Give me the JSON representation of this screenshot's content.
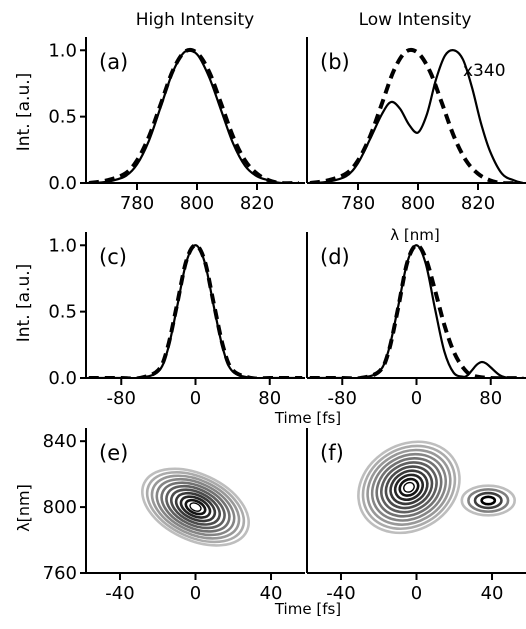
{
  "chart_data": [
    {
      "panel": "a",
      "type": "line",
      "column_title": "High Intensity",
      "ylabel": "Int. [a.u.]",
      "xlabel": "",
      "xlim": [
        763,
        836
      ],
      "ylim": [
        0,
        1.1
      ],
      "xticks": [
        780,
        800,
        820
      ],
      "yticks": [
        0.0,
        0.5,
        1.0
      ],
      "series": [
        {
          "style": "solid",
          "x": [
            764,
            770,
            776,
            780,
            784,
            788,
            792,
            796,
            800,
            804,
            808,
            812,
            816,
            820,
            824,
            828,
            834
          ],
          "y": [
            0.0,
            0.01,
            0.05,
            0.14,
            0.32,
            0.58,
            0.84,
            0.99,
            0.97,
            0.8,
            0.55,
            0.3,
            0.13,
            0.05,
            0.02,
            0.0,
            0.0
          ]
        },
        {
          "style": "dashed",
          "x": [
            764,
            770,
            776,
            780,
            784,
            788,
            792,
            796,
            800,
            804,
            808,
            812,
            816,
            820,
            824,
            828,
            834
          ],
          "y": [
            0.0,
            0.02,
            0.07,
            0.17,
            0.35,
            0.6,
            0.85,
            0.99,
            0.98,
            0.84,
            0.6,
            0.35,
            0.17,
            0.07,
            0.02,
            0.0,
            0.0
          ]
        }
      ]
    },
    {
      "panel": "b",
      "type": "line",
      "column_title": "Low Intensity",
      "annotation": "x340",
      "xlabel": "λ [nm]",
      "xlim": [
        763,
        836
      ],
      "ylim": [
        0,
        1.1
      ],
      "xticks": [
        780,
        800,
        820
      ],
      "series": [
        {
          "style": "solid",
          "x": [
            764,
            770,
            776,
            780,
            784,
            788,
            791,
            794,
            797,
            800,
            803,
            806,
            809,
            812,
            815,
            818,
            821,
            824,
            828,
            832,
            835
          ],
          "y": [
            0.0,
            0.01,
            0.05,
            0.15,
            0.33,
            0.52,
            0.61,
            0.56,
            0.44,
            0.38,
            0.52,
            0.78,
            0.96,
            1.0,
            0.93,
            0.72,
            0.45,
            0.24,
            0.07,
            0.02,
            0.0
          ]
        },
        {
          "style": "dashed",
          "x": [
            764,
            770,
            776,
            780,
            784,
            788,
            792,
            796,
            800,
            804,
            808,
            812,
            816,
            820,
            824,
            828,
            834
          ],
          "y": [
            0.0,
            0.02,
            0.07,
            0.17,
            0.35,
            0.6,
            0.85,
            0.99,
            0.98,
            0.84,
            0.6,
            0.35,
            0.17,
            0.07,
            0.02,
            0.0,
            0.0
          ]
        }
      ]
    },
    {
      "panel": "c",
      "type": "line",
      "ylabel": "Int. [a.u.]",
      "xlabel": "",
      "xlim": [
        -118,
        118
      ],
      "ylim": [
        0,
        1.1
      ],
      "xticks": [
        -80,
        0,
        80
      ],
      "yticks": [
        0.0,
        0.5,
        1.0
      ],
      "series": [
        {
          "style": "solid",
          "x": [
            -115,
            -80,
            -60,
            -40,
            -30,
            -20,
            -10,
            0,
            10,
            20,
            30,
            40,
            60,
            80,
            115
          ],
          "y": [
            0.0,
            0.0,
            0.0,
            0.05,
            0.21,
            0.53,
            0.87,
            1.0,
            0.87,
            0.53,
            0.21,
            0.05,
            0.0,
            0.0,
            0.0
          ]
        },
        {
          "style": "dashed",
          "x": [
            -115,
            -80,
            -60,
            -40,
            -30,
            -20,
            -10,
            0,
            10,
            20,
            30,
            40,
            60,
            80,
            115
          ],
          "y": [
            0.0,
            0.0,
            0.0,
            0.06,
            0.23,
            0.55,
            0.88,
            1.0,
            0.88,
            0.55,
            0.23,
            0.06,
            0.0,
            0.0,
            0.0
          ]
        }
      ]
    },
    {
      "panel": "d",
      "type": "line",
      "xlabel": "Time [fs]",
      "xlim": [
        -118,
        118
      ],
      "ylim": [
        0,
        1.1
      ],
      "xticks": [
        -80,
        0,
        80
      ],
      "series": [
        {
          "style": "solid",
          "x": [
            -115,
            -80,
            -60,
            -40,
            -30,
            -20,
            -10,
            0,
            10,
            20,
            30,
            40,
            50,
            55,
            60,
            65,
            70,
            75,
            80,
            90,
            100,
            115
          ],
          "y": [
            0.0,
            0.0,
            0.0,
            0.05,
            0.21,
            0.53,
            0.87,
            1.0,
            0.86,
            0.52,
            0.2,
            0.04,
            0.01,
            0.02,
            0.06,
            0.1,
            0.12,
            0.11,
            0.08,
            0.02,
            0.0,
            0.0
          ]
        },
        {
          "style": "dashed",
          "x": [
            -115,
            -80,
            -60,
            -40,
            -30,
            -20,
            -10,
            0,
            10,
            20,
            30,
            40,
            50,
            60,
            80,
            115
          ],
          "y": [
            0.0,
            0.0,
            0.0,
            0.05,
            0.2,
            0.52,
            0.87,
            1.0,
            0.9,
            0.66,
            0.4,
            0.2,
            0.08,
            0.02,
            0.0,
            0.0
          ]
        }
      ]
    },
    {
      "panel": "e",
      "type": "contour",
      "ylabel": "λ[nm]",
      "xlabel": "",
      "xlim": [
        -58,
        58
      ],
      "ylim": [
        760,
        848
      ],
      "xticks": [
        -40,
        0,
        40
      ],
      "yticks": [
        760,
        800,
        840
      ],
      "blobs": [
        {
          "center_x": 0,
          "center_y": 800,
          "radius_x": 30,
          "radius_y": 20,
          "tilt_deg": 25,
          "levels": 11
        }
      ]
    },
    {
      "panel": "f",
      "type": "contour",
      "xlabel": "Time [fs]",
      "xlim": [
        -58,
        58
      ],
      "ylim": [
        760,
        848
      ],
      "xticks": [
        -40,
        0,
        40
      ],
      "blobs": [
        {
          "center_x": -4,
          "center_y": 812,
          "radius_x": 28,
          "radius_y": 26,
          "tilt_deg": -30,
          "levels": 11
        },
        {
          "center_x": 38,
          "center_y": 804,
          "radius_x": 14,
          "radius_y": 9,
          "tilt_deg": 0,
          "levels": 4
        }
      ]
    }
  ]
}
